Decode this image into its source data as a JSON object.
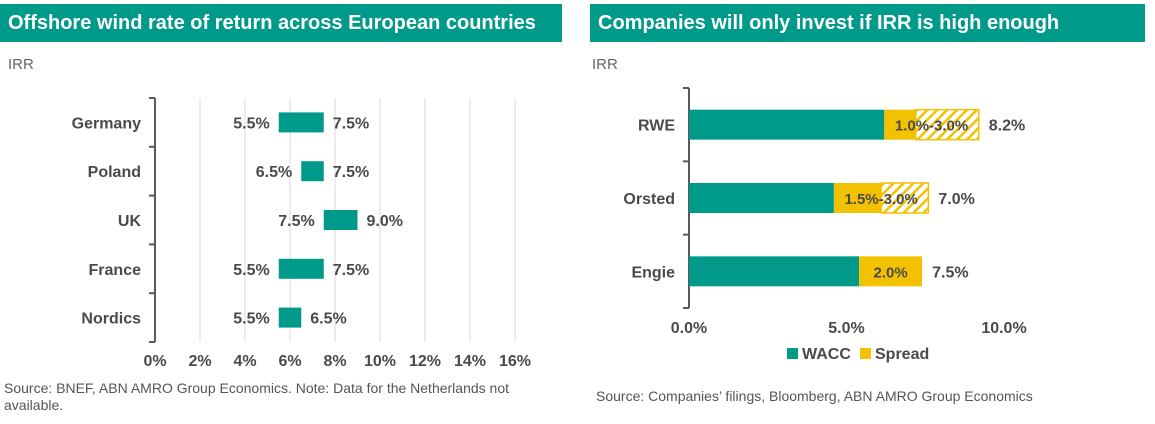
{
  "left_panel": {
    "title": "Offshore wind rate of return across European countries",
    "unit_label": "IRR",
    "source": "Source: BNEF, ABN AMRO Group Economics. Note: Data for the Netherlands not available."
  },
  "right_panel": {
    "title": "Companies will only invest if IRR is high enough",
    "unit_label": "IRR",
    "source": "Source: Companies’ filings, Bloomberg, ABN AMRO Group Economics"
  },
  "colors": {
    "teal": "#009a8b",
    "gold": "#f2c200",
    "title_bar": "#009a8b",
    "grid": "#d9d9d9"
  },
  "chart_data": [
    {
      "type": "bar",
      "orientation": "horizontal-range",
      "title": "Offshore wind rate of return across European countries",
      "ylabel": "IRR",
      "categories": [
        "Germany",
        "Poland",
        "UK",
        "France",
        "Nordics"
      ],
      "low": [
        5.5,
        6.5,
        7.5,
        5.5,
        5.5
      ],
      "high": [
        7.5,
        7.5,
        9.0,
        7.5,
        6.5
      ],
      "low_labels": [
        "5.5%",
        "6.5%",
        "7.5%",
        "5.5%",
        "5.5%"
      ],
      "high_labels": [
        "7.5%",
        "7.5%",
        "9.0%",
        "7.5%",
        "6.5%"
      ],
      "x_ticks": [
        0,
        2,
        4,
        6,
        8,
        10,
        12,
        14,
        16
      ],
      "x_tick_labels": [
        "0%",
        "2%",
        "4%",
        "6%",
        "8%",
        "10%",
        "12%",
        "14%",
        "16%"
      ],
      "xlim": [
        0,
        16
      ],
      "grid": true,
      "color": "#009a8b"
    },
    {
      "type": "bar",
      "orientation": "horizontal-stacked",
      "title": "Companies will only invest if IRR is high enough",
      "ylabel": "IRR",
      "categories": [
        "RWE",
        "Orsted",
        "Engie"
      ],
      "series": [
        {
          "name": "WACC",
          "values": [
            6.2,
            4.6,
            5.4
          ],
          "color": "#009a8b"
        },
        {
          "name": "Spread",
          "min": [
            1.0,
            1.5,
            2.0
          ],
          "max": [
            3.0,
            3.0,
            2.0
          ],
          "color": "#f2c200"
        }
      ],
      "spread_labels": [
        "1.0%-3.0%",
        "1.5%-3.0%",
        "2.0%"
      ],
      "total_labels": [
        "8.2%",
        "7.0%",
        "7.5%"
      ],
      "x_ticks": [
        0,
        5,
        10
      ],
      "x_tick_labels": [
        "0.0%",
        "5.0%",
        "10.0%"
      ],
      "xlim": [
        0,
        10
      ],
      "legend": "bottom",
      "grid": false
    }
  ]
}
